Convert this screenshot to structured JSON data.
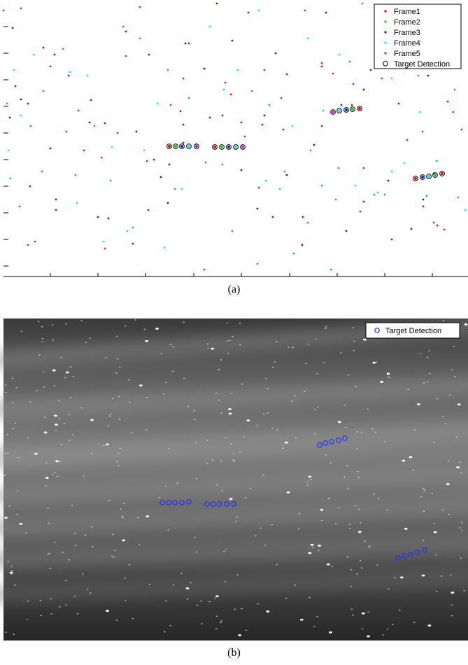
{
  "chart_data": [
    {
      "type": "scatter",
      "panel": "a",
      "xlim": [
        0,
        669
      ],
      "ylim": [
        0,
        395
      ],
      "grid": false,
      "legend_placement": "top-right",
      "series": [
        {
          "name": "Frame1",
          "color": "#e8000b",
          "marker": "dot",
          "points": [
            [
              22,
              123
            ],
            [
              40,
              148
            ],
            [
              78,
              78
            ],
            [
              98,
              108
            ],
            [
              130,
              143
            ],
            [
              150,
              176
            ],
            [
              180,
              45
            ],
            [
              213,
              78
            ],
            [
              258,
              159
            ],
            [
              262,
              204
            ],
            [
              300,
              168
            ],
            [
              330,
              135
            ],
            [
              355,
              18
            ],
            [
              375,
              178
            ],
            [
              410,
              106
            ],
            [
              460,
              180
            ],
            [
              503,
              150
            ],
            [
              540,
              40
            ],
            [
              570,
              148
            ],
            [
              600,
              70
            ],
            [
              640,
              145
            ],
            [
              43,
              266
            ],
            [
              120,
              215
            ],
            [
              190,
              348
            ],
            [
              220,
              228
            ],
            [
              262,
              178
            ],
            [
              345,
              175
            ],
            [
              390,
              310
            ],
            [
              405,
              185
            ],
            [
              433,
              310
            ],
            [
              520,
              288
            ],
            [
              560,
              342
            ],
            [
              605,
              295
            ],
            [
              80,
              300
            ],
            [
              62,
              68
            ],
            [
              212,
              300
            ],
            [
              270,
              62
            ],
            [
              318,
              165
            ],
            [
              460,
              95
            ],
            [
              625,
              322
            ]
          ]
        },
        {
          "name": "Frame2",
          "color": "#10d010",
          "marker": "dot",
          "points": [
            [
              10,
              148
            ],
            [
              44,
              180
            ],
            [
              62,
              130
            ],
            [
              90,
              70
            ],
            [
              108,
              250
            ],
            [
              135,
              180
            ],
            [
              158,
              258
            ],
            [
              176,
              38
            ],
            [
              200,
              55
            ],
            [
              240,
              100
            ],
            [
              270,
              140
            ],
            [
              294,
              232
            ],
            [
              332,
              330
            ],
            [
              360,
              130
            ],
            [
              385,
              150
            ],
            [
              407,
              245
            ],
            [
              420,
              362
            ],
            [
              444,
              215
            ],
            [
              460,
              265
            ],
            [
              473,
              385
            ],
            [
              484,
              240
            ],
            [
              500,
              88
            ],
            [
              518,
              5
            ],
            [
              535,
              278
            ],
            [
              550,
              278
            ],
            [
              598,
              108
            ],
            [
              624,
              230
            ],
            [
              650,
              128
            ],
            [
              15,
              255
            ],
            [
              60,
              245
            ],
            [
              190,
              325
            ],
            [
              250,
              270
            ],
            [
              318,
              235
            ],
            [
              368,
              377
            ],
            [
              440,
              318
            ],
            [
              480,
              285
            ],
            [
              610,
              280
            ],
            [
              655,
              282
            ]
          ]
        },
        {
          "name": "Frame3",
          "color": "#1020d0",
          "marker": "dot",
          "points": [
            [
              14,
              168
            ],
            [
              30,
              142
            ],
            [
              72,
              212
            ],
            [
              80,
              285
            ],
            [
              128,
              175
            ],
            [
              155,
              312
            ],
            [
              195,
              188
            ],
            [
              230,
              253
            ],
            [
              240,
              290
            ],
            [
              265,
              62
            ],
            [
              292,
              98
            ],
            [
              310,
              5
            ],
            [
              332,
              58
            ],
            [
              345,
              243
            ],
            [
              378,
              165
            ],
            [
              394,
              76
            ],
            [
              410,
              250
            ],
            [
              449,
              207
            ],
            [
              466,
              18
            ],
            [
              488,
              150
            ],
            [
              495,
              330
            ],
            [
              520,
              128
            ],
            [
              530,
              100
            ],
            [
              555,
              258
            ],
            [
              588,
              327
            ],
            [
              605,
              285
            ],
            [
              612,
              108
            ],
            [
              620,
              248
            ],
            [
              368,
              298
            ],
            [
              18,
              40
            ],
            [
              242,
              235
            ],
            [
              600,
              78
            ],
            [
              140,
              310
            ],
            [
              432,
              350
            ]
          ]
        },
        {
          "name": "Frame4",
          "color": "#10e8e8",
          "marker": "dot",
          "points": [
            [
              12,
              215
            ],
            [
              30,
              165
            ],
            [
              48,
              78
            ],
            [
              100,
              103
            ],
            [
              125,
              108
            ],
            [
              148,
              345
            ],
            [
              160,
              210
            ],
            [
              206,
              215
            ],
            [
              225,
              148
            ],
            [
              235,
              354
            ],
            [
              260,
              270
            ],
            [
              280,
              206
            ],
            [
              300,
              38
            ],
            [
              320,
              128
            ],
            [
              340,
              100
            ],
            [
              370,
              15
            ],
            [
              380,
              258
            ],
            [
              400,
              270
            ],
            [
              418,
              180
            ],
            [
              440,
              55
            ],
            [
              462,
              158
            ],
            [
              485,
              78
            ],
            [
              508,
              265
            ],
            [
              540,
              275
            ],
            [
              560,
              245
            ],
            [
              578,
              233
            ],
            [
              600,
              160
            ],
            [
              625,
              230
            ],
            [
              640,
              48
            ],
            [
              20,
              100
            ],
            [
              110,
              290
            ],
            [
              182,
              330
            ],
            [
              560,
              112
            ],
            [
              665,
              300
            ]
          ]
        },
        {
          "name": "Frame5",
          "color": "#d010d0",
          "marker": "dot",
          "points": [
            [
              40,
              350
            ],
            [
              50,
              345
            ],
            [
              28,
              295
            ],
            [
              72,
              95
            ],
            [
              95,
              188
            ],
            [
              112,
              158
            ],
            [
              150,
              355
            ],
            [
              168,
              190
            ],
            [
              180,
              80
            ],
            [
              200,
              10
            ],
            [
              210,
              230
            ],
            [
              244,
              150
            ],
            [
              292,
              385
            ],
            [
              322,
              118
            ],
            [
              350,
              195
            ],
            [
              370,
              268
            ],
            [
              402,
              140
            ],
            [
              436,
              15
            ],
            [
              460,
              90
            ],
            [
              476,
              105
            ],
            [
              505,
              120
            ],
            [
              520,
              240
            ],
            [
              546,
              112
            ],
            [
              582,
              200
            ],
            [
              604,
              188
            ],
            [
              620,
              318
            ],
            [
              635,
              328
            ],
            [
              648,
              160
            ],
            [
              660,
              185
            ],
            [
              5,
              15
            ],
            [
              30,
              12
            ],
            [
              145,
              225
            ],
            [
              262,
              112
            ],
            [
              378,
              100
            ],
            [
              515,
              302
            ],
            [
              608,
              70
            ]
          ]
        },
        {
          "name": "Target Detection",
          "color": "#000000",
          "marker": "circle",
          "points": [
            [
              242,
              209
            ],
            [
              251,
              209
            ],
            [
              260,
              209
            ],
            [
              270,
              209
            ],
            [
              281,
              209
            ],
            [
              307,
              210
            ],
            [
              317,
              210
            ],
            [
              327,
              210
            ],
            [
              337,
              210
            ],
            [
              347,
              210
            ],
            [
              476,
              160
            ],
            [
              485,
              158
            ],
            [
              495,
              157
            ],
            [
              504,
              156
            ],
            [
              514,
              155
            ],
            [
              594,
              255
            ],
            [
              604,
              253
            ],
            [
              613,
              252
            ],
            [
              622,
              250
            ],
            [
              632,
              248
            ]
          ],
          "fills": [
            "#e8000b",
            "#10d010",
            "#1020d0",
            "#10e8e8",
            "#d010d0",
            "#e8000b",
            "#10d010",
            "#1020d0",
            "#10e8e8",
            "#d010d0",
            "#d010d0",
            "#10e8e8",
            "#1020d0",
            "#10d010",
            "#e8000b",
            "#e8000b",
            "#1020d0",
            "#10e8e8",
            "#10d010",
            "#e8000b"
          ]
        }
      ],
      "caption": "(a)"
    },
    {
      "type": "scatter",
      "panel": "b",
      "background": "starfield-image",
      "xlim": [
        0,
        669
      ],
      "ylim": [
        0,
        460
      ],
      "legend_placement": "top-right",
      "series": [
        {
          "name": "Target Detection",
          "color": "#1a2fff",
          "marker": "circle",
          "points": [
            [
              232,
              263
            ],
            [
              241,
              263
            ],
            [
              250,
              263
            ],
            [
              260,
              263
            ],
            [
              270,
              262
            ],
            [
              296,
              265
            ],
            [
              305,
              265
            ],
            [
              314,
              265
            ],
            [
              324,
              265
            ],
            [
              334,
              265
            ],
            [
              457,
              181
            ],
            [
              465,
              178
            ],
            [
              474,
              176
            ],
            [
              484,
              174
            ],
            [
              493,
              171
            ],
            [
              569,
              342
            ],
            [
              578,
              339
            ],
            [
              587,
              337
            ],
            [
              597,
              334
            ],
            [
              607,
              331
            ]
          ]
        }
      ],
      "caption": "(b)"
    }
  ]
}
